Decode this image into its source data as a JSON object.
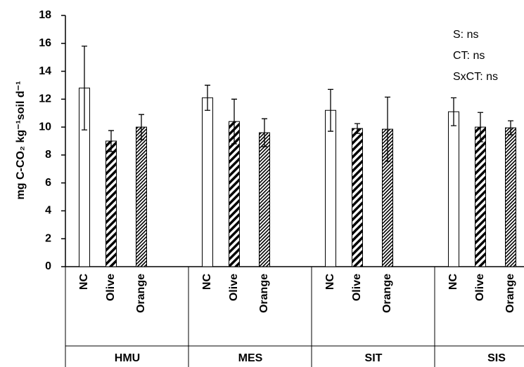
{
  "chart_data": {
    "type": "bar",
    "ylabel": "mg C-CO₂ kg⁻¹soil d⁻¹",
    "groups": [
      "HMU",
      "MES",
      "SIT",
      "SIS"
    ],
    "series": [
      {
        "name": "NC",
        "color": "#ffffff",
        "hatch": "none",
        "values": [
          12.8,
          12.1,
          11.2,
          11.1
        ],
        "errors": [
          3.0,
          0.9,
          1.5,
          1.0
        ]
      },
      {
        "name": "Olive",
        "color": "#ffffff",
        "hatch": "wide",
        "values": [
          9.0,
          10.4,
          9.9,
          10.0
        ],
        "errors": [
          0.75,
          1.6,
          0.35,
          1.05
        ]
      },
      {
        "name": "Orange",
        "color": "#ffffff",
        "hatch": "fine",
        "values": [
          10.0,
          9.6,
          9.85,
          9.95
        ],
        "errors": [
          0.9,
          1.0,
          2.3,
          0.5
        ]
      }
    ],
    "annotations": [
      "S: ns",
      "CT: ns",
      "SxCT: ns"
    ],
    "ylim": [
      0,
      18
    ],
    "yticks": [
      0,
      2,
      4,
      6,
      8,
      10,
      12,
      14,
      16,
      18
    ]
  }
}
